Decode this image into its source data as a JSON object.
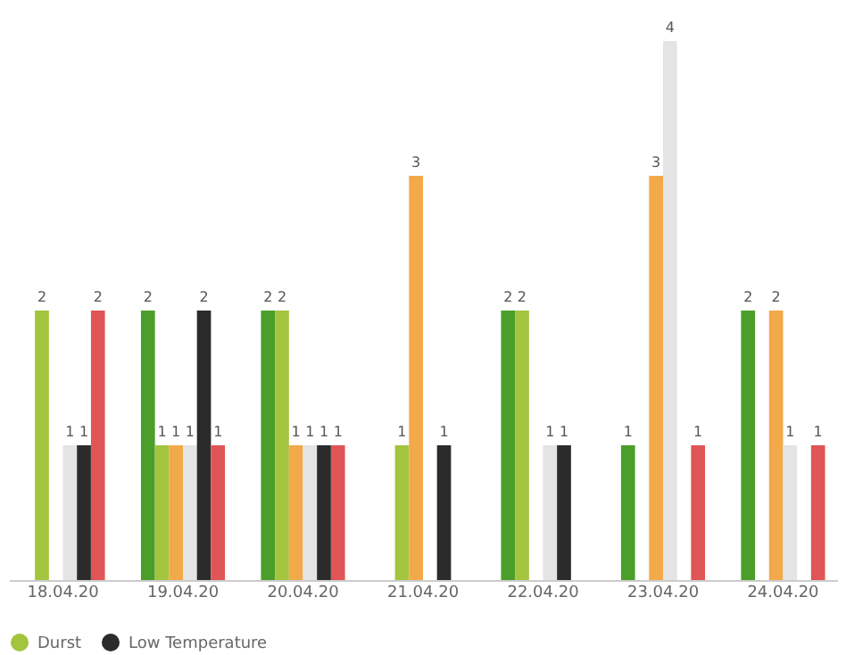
{
  "chart_data": {
    "type": "bar",
    "categories": [
      "18.04.20",
      "19.04.20",
      "20.04.20",
      "21.04.20",
      "22.04.20",
      "23.04.20",
      "24.04.20"
    ],
    "series": [
      {
        "color": "#4c9e2a",
        "values": [
          null,
          2,
          2,
          null,
          2,
          1,
          2
        ]
      },
      {
        "name": "Durst",
        "color": "#a3c43d",
        "values": [
          2,
          1,
          2,
          1,
          2,
          null,
          null
        ]
      },
      {
        "color": "#f2a94a",
        "values": [
          null,
          1,
          1,
          3,
          null,
          3,
          2
        ]
      },
      {
        "color": "#e4e4e4",
        "values": [
          1,
          1,
          1,
          null,
          1,
          4,
          1
        ]
      },
      {
        "name": "Low Temperature",
        "color": "#2b2b2b",
        "values": [
          1,
          2,
          1,
          1,
          1,
          null,
          null
        ]
      },
      {
        "color": "#e05555",
        "values": [
          2,
          1,
          1,
          null,
          null,
          1,
          1
        ]
      }
    ],
    "ylim": [
      0,
      4
    ],
    "data_labels": true,
    "legend": "bottom"
  }
}
